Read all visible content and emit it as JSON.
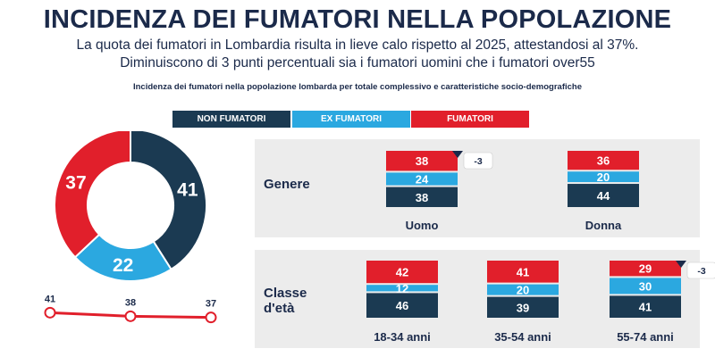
{
  "header": {
    "title": "INCIDENZA DEI FUMATORI NELLA POPOLAZIONE",
    "subtitle_line1": "La quota dei fumatori in Lombardia risulta in lieve calo rispetto al 2025, attestandosi al 37%.",
    "subtitle_line2": "Diminuiscono di 3 punti percentuali sia i fumatori uomini che i fumatori over55",
    "chart_title": "Incidenza dei fumatori nella popolazione lombarda per totale complessivo e caratteristiche socio-demografiche"
  },
  "legend": [
    {
      "label": "NON FUMATORI",
      "color": "#1b3a52"
    },
    {
      "label": "EX FUMATORI",
      "color": "#2ba8e0"
    },
    {
      "label": "FUMATORI",
      "color": "#e11f2b"
    }
  ],
  "chart_data": [
    {
      "type": "pie",
      "donut": true,
      "series": [
        {
          "name": "NON FUMATORI",
          "value": 41,
          "color": "#1b3a52"
        },
        {
          "name": "EX FUMATORI",
          "value": 22,
          "color": "#2ba8e0"
        },
        {
          "name": "FUMATORI",
          "value": 37,
          "color": "#e11f2b"
        }
      ]
    },
    {
      "type": "line",
      "values": [
        41,
        38,
        37
      ],
      "color": "#e11f2b"
    },
    {
      "type": "bar",
      "stacked": true,
      "panel_label": "Genere",
      "categories": [
        "Uomo",
        "Donna"
      ],
      "series": [
        {
          "name": "NON FUMATORI",
          "values": [
            38,
            44
          ],
          "color": "#1b3a52"
        },
        {
          "name": "EX FUMATORI",
          "values": [
            24,
            20
          ],
          "color": "#2ba8e0"
        },
        {
          "name": "FUMATORI",
          "values": [
            38,
            36
          ],
          "color": "#e11f2b"
        }
      ],
      "annotations": [
        {
          "category": "Uomo",
          "text": "-3"
        }
      ]
    },
    {
      "type": "bar",
      "stacked": true,
      "panel_label_line1": "Classe",
      "panel_label_line2": "d'età",
      "categories": [
        "18-34 anni",
        "35-54 anni",
        "55-74 anni"
      ],
      "series": [
        {
          "name": "NON FUMATORI",
          "values": [
            46,
            39,
            41
          ],
          "color": "#1b3a52"
        },
        {
          "name": "EX FUMATORI",
          "values": [
            12,
            20,
            30
          ],
          "color": "#2ba8e0"
        },
        {
          "name": "FUMATORI",
          "values": [
            42,
            41,
            29
          ],
          "color": "#e11f2b"
        }
      ],
      "annotations": [
        {
          "category": "55-74 anni",
          "text": "-3"
        }
      ]
    }
  ]
}
